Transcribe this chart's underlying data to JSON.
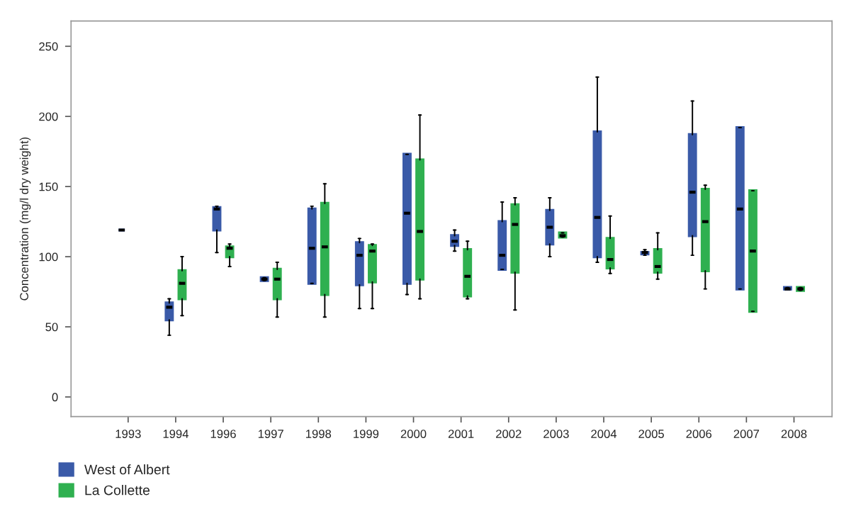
{
  "chart_data": {
    "type": "box",
    "ylabel": "Concentration (mg/l dry weight)",
    "categories": [
      "1993",
      "1994",
      "1996",
      "1997",
      "1998",
      "1999",
      "2000",
      "2001",
      "2002",
      "2003",
      "2004",
      "2005",
      "2006",
      "2007",
      "2008"
    ],
    "ylim": [
      -14,
      268
    ],
    "yticks": [
      0,
      50,
      100,
      150,
      200,
      250
    ],
    "grid": false,
    "legend": "bottom left",
    "series": [
      {
        "name": "West of Albert",
        "color": "#3a5aa8",
        "boxes": [
          {
            "low": 119,
            "q1": 119,
            "median": 119,
            "q3": 119,
            "high": 119
          },
          {
            "low": 44,
            "q1": 55,
            "median": 64,
            "q3": 67,
            "high": 70
          },
          {
            "low": 103,
            "q1": 119,
            "median": 134,
            "q3": 135,
            "high": 136
          },
          {
            "low": 83,
            "q1": 83,
            "median": 84,
            "q3": 85,
            "high": 85
          },
          {
            "low": 81,
            "q1": 81,
            "median": 106,
            "q3": 134,
            "high": 136
          },
          {
            "low": 63,
            "q1": 80,
            "median": 101,
            "q3": 110,
            "high": 113
          },
          {
            "low": 73,
            "q1": 81,
            "median": 131,
            "q3": 173,
            "high": 173
          },
          {
            "low": 104,
            "q1": 108,
            "median": 111,
            "q3": 115,
            "high": 119
          },
          {
            "low": 91,
            "q1": 91,
            "median": 101,
            "q3": 125,
            "high": 139
          },
          {
            "low": 100,
            "q1": 109,
            "median": 121,
            "q3": 133,
            "high": 142
          },
          {
            "low": 96,
            "q1": 100,
            "median": 128,
            "q3": 189,
            "high": 228
          },
          {
            "low": 101,
            "q1": 102,
            "median": 103,
            "q3": 103,
            "high": 105
          },
          {
            "low": 101,
            "q1": 115,
            "median": 146,
            "q3": 187,
            "high": 211
          },
          {
            "low": 77,
            "q1": 77,
            "median": 134,
            "q3": 192,
            "high": 192
          },
          {
            "low": 77,
            "q1": 77,
            "median": 77,
            "q3": 78,
            "high": 78
          }
        ]
      },
      {
        "name": "La Collette",
        "color": "#2fb050",
        "boxes": [
          null,
          {
            "low": 58,
            "q1": 70,
            "median": 81,
            "q3": 90,
            "high": 100
          },
          {
            "low": 93,
            "q1": 100,
            "median": 106,
            "q3": 107,
            "high": 109
          },
          {
            "low": 57,
            "q1": 70,
            "median": 84,
            "q3": 91,
            "high": 96
          },
          {
            "low": 57,
            "q1": 73,
            "median": 107,
            "q3": 138,
            "high": 152
          },
          {
            "low": 63,
            "q1": 82,
            "median": 104,
            "q3": 108,
            "high": 109
          },
          {
            "low": 70,
            "q1": 84,
            "median": 118,
            "q3": 169,
            "high": 201
          },
          {
            "low": 70,
            "q1": 72,
            "median": 86,
            "q3": 105,
            "high": 111
          },
          {
            "low": 62,
            "q1": 89,
            "median": 123,
            "q3": 137,
            "high": 142
          },
          {
            "low": 114,
            "q1": 114,
            "median": 115,
            "q3": 117,
            "high": 117
          },
          {
            "low": 88,
            "q1": 92,
            "median": 98,
            "q3": 113,
            "high": 129
          },
          {
            "low": 84,
            "q1": 89,
            "median": 93,
            "q3": 105,
            "high": 117
          },
          {
            "low": 77,
            "q1": 90,
            "median": 125,
            "q3": 148,
            "high": 151
          },
          {
            "low": 61,
            "q1": 61,
            "median": 104,
            "q3": 147,
            "high": 147
          },
          {
            "low": 76,
            "q1": 76,
            "median": 77,
            "q3": 78,
            "high": 78
          }
        ]
      }
    ]
  }
}
